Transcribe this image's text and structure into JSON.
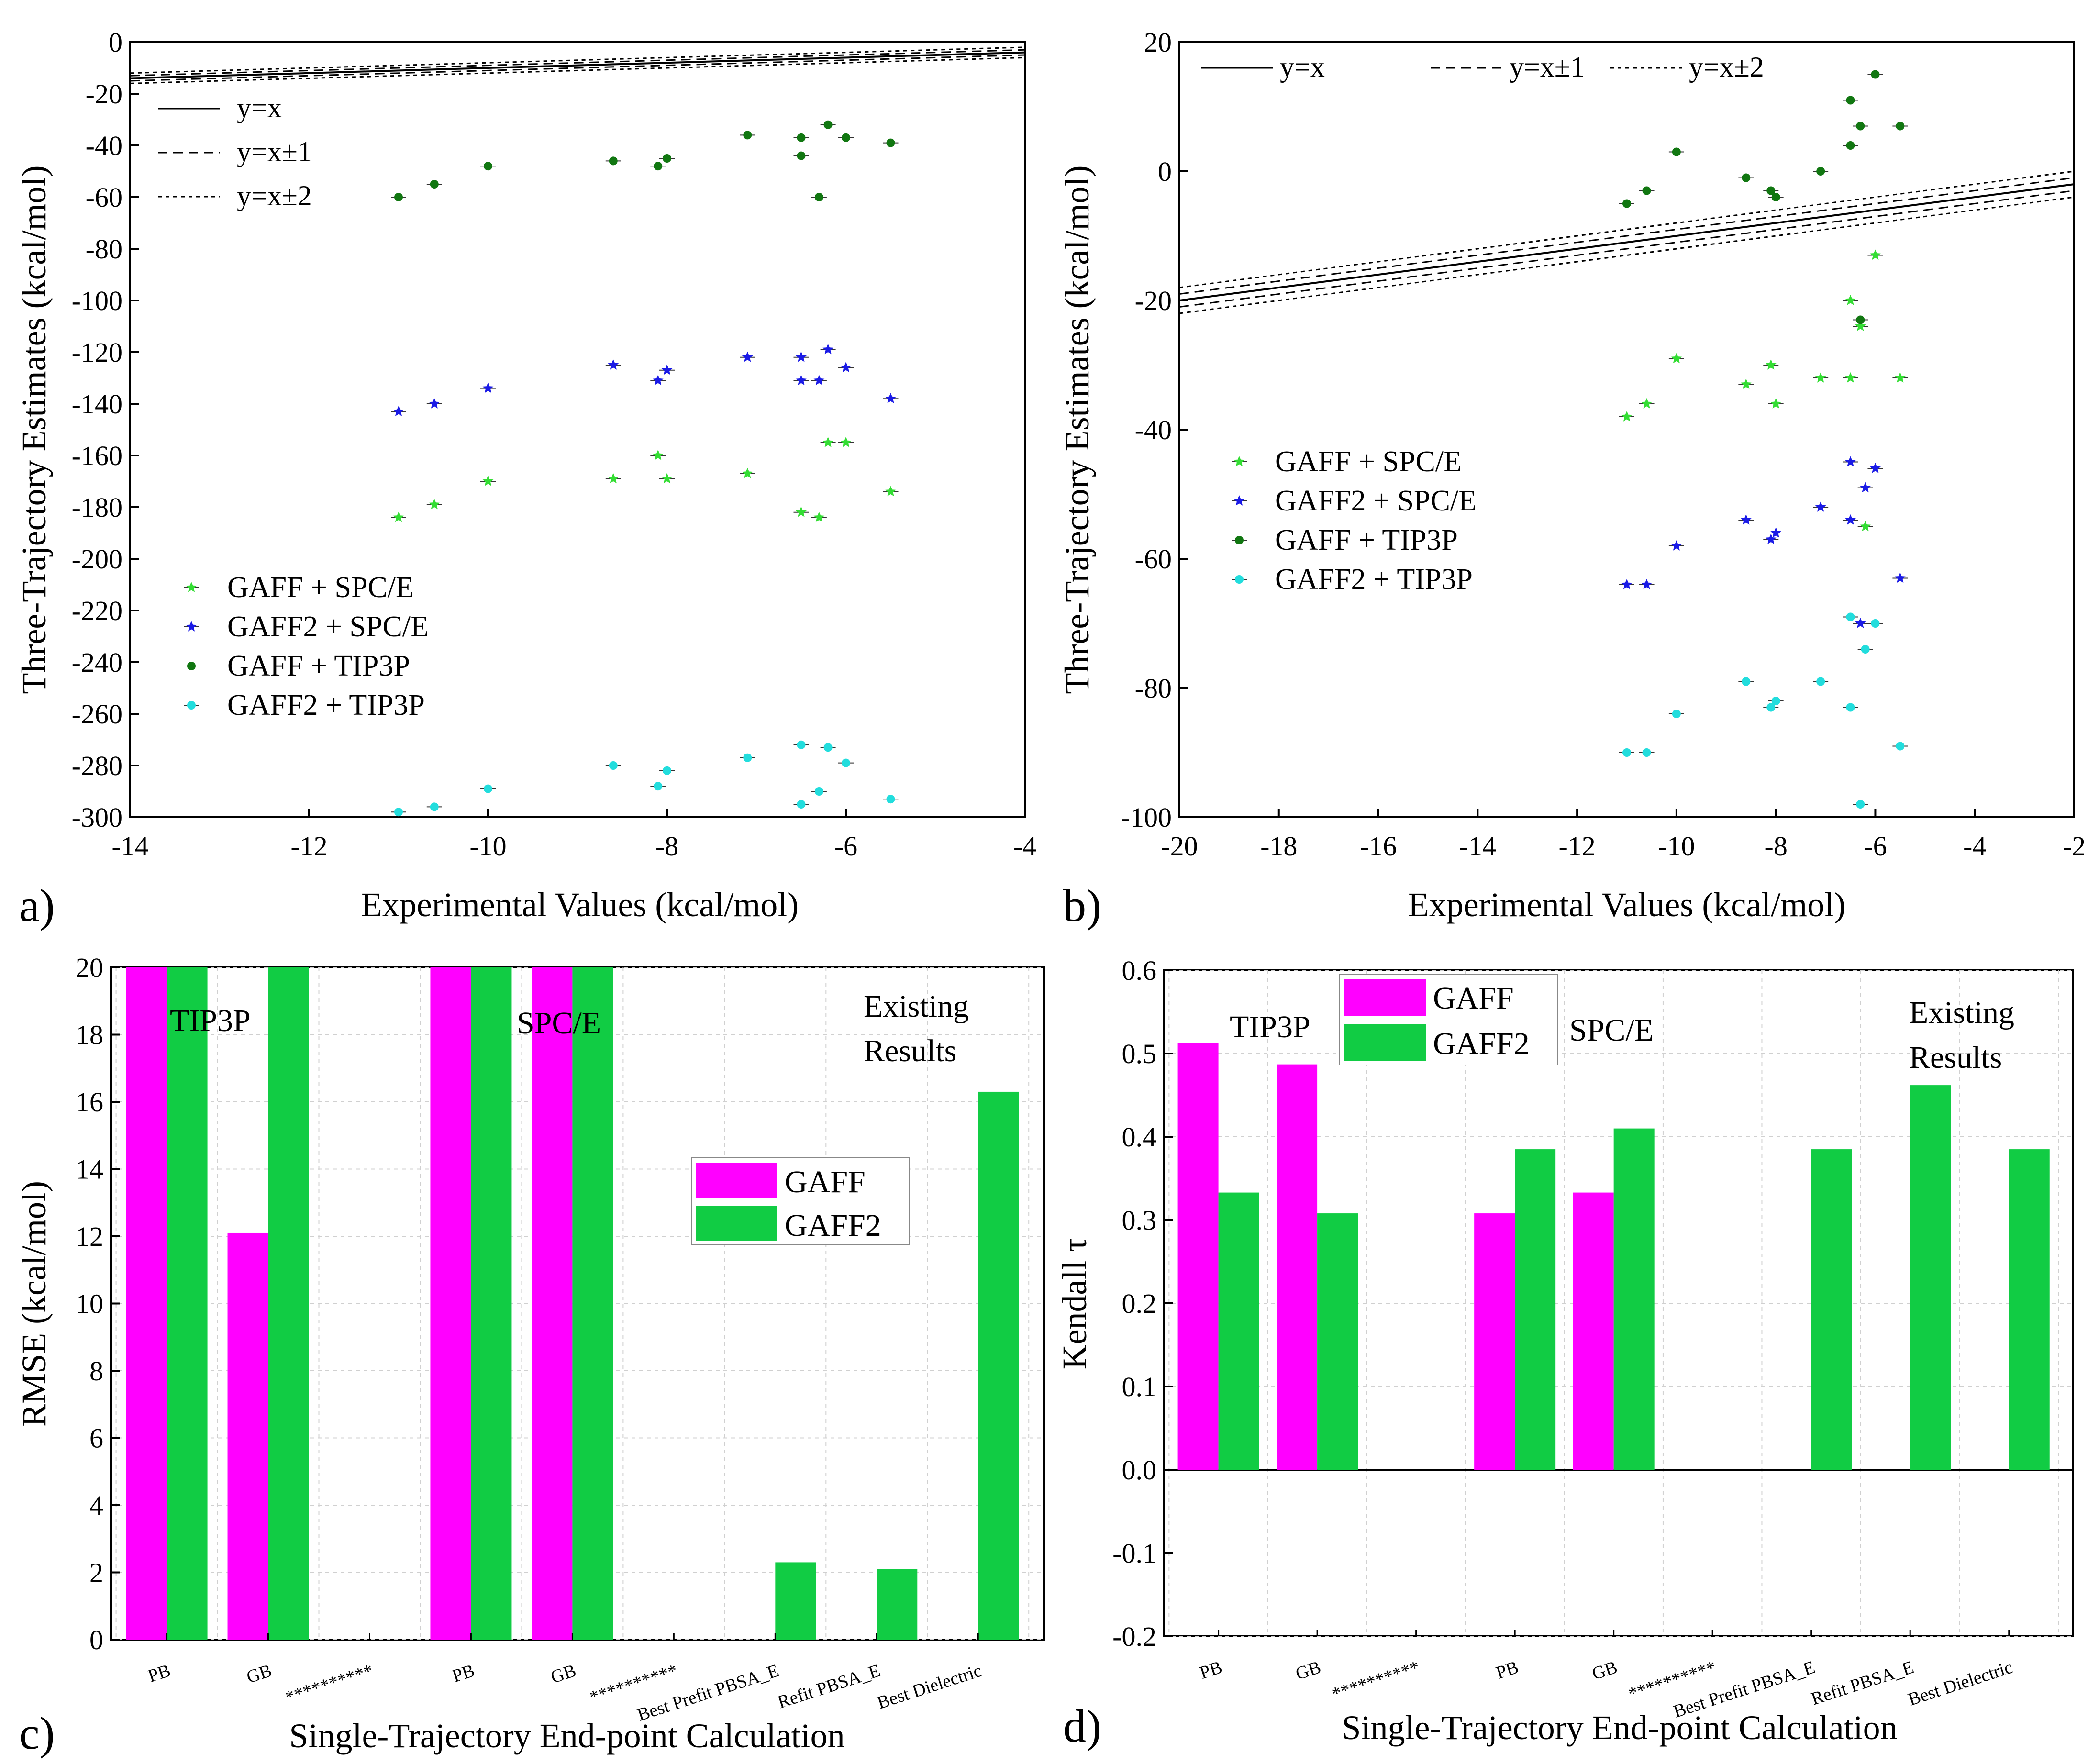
{
  "chart_data": [
    {
      "panel": "a)",
      "type": "scatter",
      "xlabel": "Experimental Values (kcal/mol)",
      "ylabel": "Three-Trajectory Estimates (kcal/mol)",
      "xlim": [
        -14,
        -4
      ],
      "ylim": [
        -300,
        0
      ],
      "xticks": [
        "-14",
        "-12",
        "-10",
        "-8",
        "-6",
        "-4"
      ],
      "yticks": [
        "0",
        "-20",
        "-40",
        "-60",
        "-80",
        "-100",
        "-120",
        "-140",
        "-160",
        "-180",
        "-200",
        "-220",
        "-240",
        "-260",
        "-280",
        "-300"
      ],
      "line_legend": [
        "y=x",
        "y=x±1",
        "y=x±2"
      ],
      "series": [
        {
          "name": "GAFF + SPC/E",
          "color": "#33dd33",
          "marker": "star",
          "x": [
            -11.0,
            -10.6,
            -10.0,
            -8.6,
            -8.1,
            -8.0,
            -7.1,
            -6.5,
            -6.3,
            -6.2,
            -6.0,
            -5.5
          ],
          "y": [
            -184,
            -179,
            -170,
            -169,
            -160,
            -169,
            -167,
            -182,
            -184,
            -155,
            -155,
            -174
          ]
        },
        {
          "name": "GAFF2 + SPC/E",
          "color": "#1a1ae6",
          "marker": "star",
          "x": [
            -11.0,
            -10.6,
            -10.0,
            -8.6,
            -8.1,
            -8.0,
            -7.1,
            -6.5,
            -6.5,
            -6.3,
            -6.2,
            -6.0,
            -5.5
          ],
          "y": [
            -143,
            -140,
            -134,
            -125,
            -131,
            -127,
            -122,
            -122,
            -131,
            -131,
            -119,
            -126,
            -138
          ]
        },
        {
          "name": "GAFF + TIP3P",
          "color": "#117711",
          "marker": "circle",
          "x": [
            -11.0,
            -10.6,
            -10.0,
            -8.6,
            -8.1,
            -8.0,
            -7.1,
            -6.5,
            -6.5,
            -6.3,
            -6.2,
            -6.0,
            -5.5
          ],
          "y": [
            -60,
            -55,
            -48,
            -46,
            -48,
            -45,
            -36,
            -37,
            -44,
            -60,
            -32,
            -37,
            -39
          ]
        },
        {
          "name": "GAFF2 + TIP3P",
          "color": "#22dddd",
          "marker": "circle",
          "x": [
            -11.0,
            -10.6,
            -10.0,
            -8.6,
            -8.1,
            -8.0,
            -7.1,
            -6.5,
            -6.5,
            -6.3,
            -6.2,
            -6.0,
            -5.5
          ],
          "y": [
            -298,
            -296,
            -289,
            -280,
            -288,
            -282,
            -277,
            -272,
            -295,
            -290,
            -273,
            -279,
            -293
          ]
        }
      ]
    },
    {
      "panel": "b)",
      "type": "scatter",
      "xlabel": "Experimental Values (kcal/mol)",
      "ylabel": "Three-Trajectory Estimates (kcal/mol)",
      "xlim": [
        -20,
        -2
      ],
      "ylim": [
        -100,
        20
      ],
      "xticks": [
        "-20",
        "-18",
        "-16",
        "-14",
        "-12",
        "-10",
        "-8",
        "-6",
        "-4",
        "-2"
      ],
      "yticks": [
        "20",
        "0",
        "-20",
        "-40",
        "-60",
        "-80",
        "-100"
      ],
      "line_legend": [
        "y=x",
        "y=x±1",
        "y=x±2"
      ],
      "series": [
        {
          "name": "GAFF + SPC/E",
          "color": "#33dd33",
          "marker": "star",
          "x": [
            -11.0,
            -10.6,
            -10.0,
            -8.6,
            -8.1,
            -8.0,
            -7.1,
            -6.5,
            -6.5,
            -6.3,
            -6.2,
            -6.0,
            -5.5
          ],
          "y": [
            -38,
            -36,
            -29,
            -33,
            -30,
            -36,
            -32,
            -32,
            -20,
            -24,
            -55,
            -13,
            -32
          ]
        },
        {
          "name": "GAFF2 + SPC/E",
          "color": "#1a1ae6",
          "marker": "star",
          "x": [
            -11.0,
            -10.6,
            -10.0,
            -8.6,
            -8.1,
            -8.0,
            -7.1,
            -6.5,
            -6.5,
            -6.3,
            -6.2,
            -6.0,
            -5.5
          ],
          "y": [
            -64,
            -64,
            -58,
            -54,
            -57,
            -56,
            -52,
            -45,
            -54,
            -70,
            -49,
            -46,
            -63
          ]
        },
        {
          "name": "GAFF + TIP3P",
          "color": "#117711",
          "marker": "circle",
          "x": [
            -11.0,
            -10.6,
            -10.0,
            -8.6,
            -8.1,
            -8.0,
            -7.1,
            -6.5,
            -6.5,
            -6.3,
            -6.3,
            -6.0,
            -5.5
          ],
          "y": [
            -5,
            -3,
            3,
            -1,
            -3,
            -4,
            0,
            11,
            4,
            -23,
            7,
            15,
            7
          ]
        },
        {
          "name": "GAFF2 + TIP3P",
          "color": "#22dddd",
          "marker": "circle",
          "x": [
            -11.0,
            -10.6,
            -10.0,
            -8.6,
            -8.1,
            -8.0,
            -7.1,
            -6.5,
            -6.5,
            -6.3,
            -6.2,
            -6.0,
            -5.5
          ],
          "y": [
            -90,
            -90,
            -84,
            -79,
            -83,
            -82,
            -79,
            -69,
            -83,
            -98,
            -74,
            -70,
            -89
          ]
        }
      ]
    },
    {
      "panel": "c)",
      "type": "bar",
      "xlabel": "Single-Trajectory End-point Calculation",
      "ylabel": "RMSE (kcal/mol)",
      "ylim": [
        0,
        20
      ],
      "yticks": [
        "0",
        "2",
        "4",
        "6",
        "8",
        "10",
        "12",
        "14",
        "16",
        "18",
        "20"
      ],
      "categories": [
        "PB",
        "GB",
        "**********",
        "PB",
        "GB",
        "**********",
        "Best Prefit PBSA_E",
        "Refit PBSA_E",
        "Best Dielectric"
      ],
      "series": [
        {
          "name": "GAFF",
          "color": "#ff00ff",
          "values": [
            20,
            12.1,
            null,
            20,
            20,
            null,
            null,
            null,
            null
          ]
        },
        {
          "name": "GAFF2",
          "color": "#11cc44",
          "values": [
            20,
            20,
            null,
            20,
            20,
            null,
            2.3,
            2.1,
            16.3
          ]
        }
      ],
      "annotations": [
        "TIP3P",
        "SPC/E",
        "Existing",
        "Results"
      ]
    },
    {
      "panel": "d)",
      "type": "bar",
      "xlabel": "Single-Trajectory End-point Calculation",
      "ylabel": "Kendall τ",
      "ylim": [
        -0.2,
        0.6
      ],
      "yticks": [
        "0.6",
        "0.5",
        "0.4",
        "0.3",
        "0.2",
        "0.1",
        "0.0",
        "-0.1",
        "-0.2"
      ],
      "categories": [
        "PB",
        "GB",
        "**********",
        "PB",
        "GB",
        "**********",
        "Best Prefit PBSA_E",
        "Refit PBSA_E",
        "Best Dielectric"
      ],
      "series": [
        {
          "name": "GAFF",
          "color": "#ff00ff",
          "values": [
            0.513,
            0.487,
            null,
            0.308,
            0.333,
            null,
            null,
            null,
            null
          ]
        },
        {
          "name": "GAFF2",
          "color": "#11cc44",
          "values": [
            0.333,
            0.308,
            null,
            0.385,
            0.41,
            null,
            0.385,
            0.462,
            0.385
          ]
        }
      ],
      "annotations": [
        "TIP3P",
        "SPC/E",
        "Existing",
        "Results"
      ]
    }
  ]
}
